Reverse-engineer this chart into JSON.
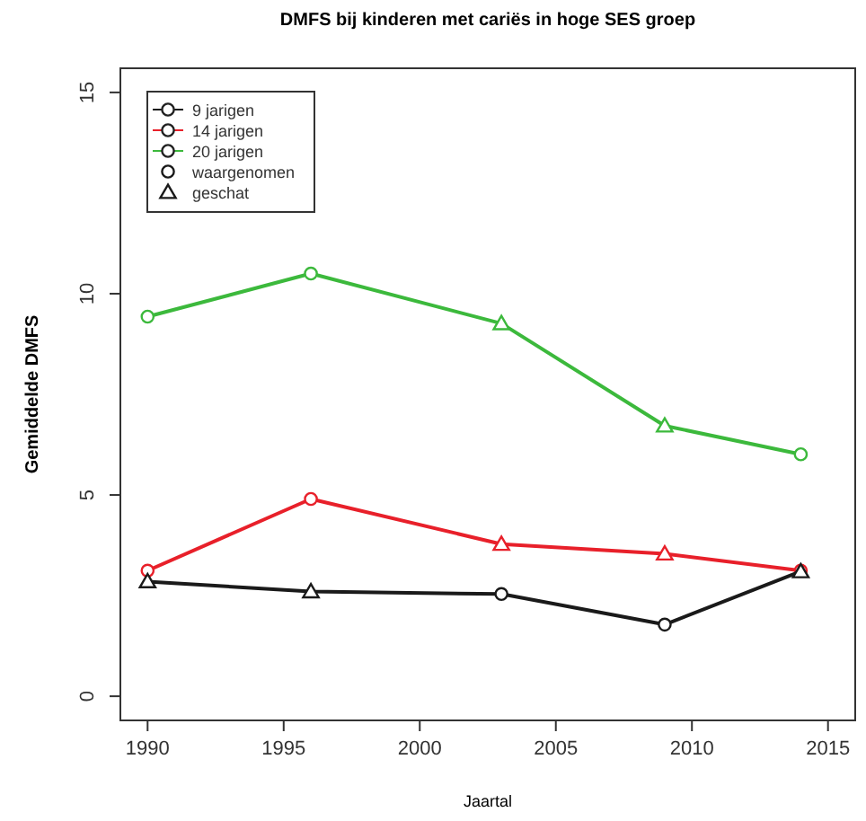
{
  "chart_data": {
    "type": "line",
    "title": "DMFS bij kinderen met cariës in hoge SES groep",
    "xlabel": "Jaartal",
    "ylabel": "Gemiddelde DMFS",
    "x": [
      1990,
      1996,
      2003,
      2009,
      2014
    ],
    "xlim": [
      1989,
      2016
    ],
    "xticks": [
      1990,
      1995,
      2000,
      2005,
      2010,
      2015
    ],
    "ylim": [
      -0.6,
      15.6
    ],
    "yticks": [
      0,
      5,
      10,
      15
    ],
    "legend": "top left",
    "grid": false,
    "line_style": "solid",
    "series": [
      {
        "name": "9 jarigen",
        "color": "#1a1a1a",
        "values": [
          2.85,
          2.6,
          2.54,
          1.78,
          3.1
        ],
        "marker": [
          "triangle",
          "triangle",
          "circle",
          "circle",
          "triangle"
        ]
      },
      {
        "name": "14 jarigen",
        "color": "#e8202a",
        "values": [
          3.12,
          4.9,
          3.78,
          3.54,
          3.12
        ],
        "marker": [
          "circle",
          "circle",
          "triangle",
          "triangle",
          "circle"
        ]
      },
      {
        "name": "20 jarigen",
        "color": "#3cb93c",
        "values": [
          9.43,
          10.5,
          9.26,
          6.72,
          6.01
        ],
        "marker": [
          "circle",
          "circle",
          "triangle",
          "triangle",
          "circle"
        ]
      },
      {
        "name": "waargenomen",
        "type": "scatter",
        "color": "#1a1a1a",
        "marker": "circle",
        "values": [
          null,
          null,
          null,
          null,
          null
        ]
      },
      {
        "name": "geschat",
        "type": "scatter",
        "color": "#1a1a1a",
        "marker": "triangle",
        "values": [
          null,
          null,
          null,
          null,
          null
        ]
      }
    ]
  }
}
